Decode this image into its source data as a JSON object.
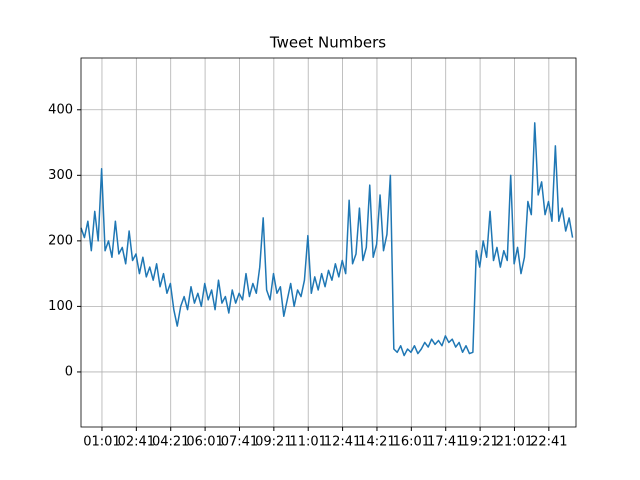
{
  "chart_data": {
    "type": "line",
    "title": "Tweet Numbers",
    "x": [
      0,
      10,
      20,
      30,
      40,
      50,
      60,
      70,
      80,
      90,
      100,
      110,
      120,
      130,
      140,
      150,
      160,
      170,
      180,
      190,
      200,
      210,
      220,
      230,
      240,
      250,
      260,
      270,
      280,
      290,
      300,
      310,
      320,
      330,
      340,
      350,
      360,
      370,
      380,
      390,
      400,
      410,
      420,
      430,
      440,
      450,
      460,
      470,
      480,
      490,
      500,
      510,
      520,
      530,
      540,
      550,
      560,
      570,
      580,
      590,
      600,
      610,
      620,
      630,
      640,
      650,
      660,
      670,
      680,
      690,
      700,
      710,
      720,
      730,
      740,
      750,
      760,
      770,
      780,
      790,
      800,
      810,
      820,
      830,
      840,
      850,
      860,
      870,
      880,
      890,
      900,
      910,
      920,
      930,
      940,
      950,
      960,
      970,
      980,
      990,
      1000,
      1010,
      1020,
      1030,
      1040,
      1050,
      1060,
      1070,
      1080,
      1090,
      1100,
      1110,
      1120,
      1130,
      1140,
      1150,
      1160,
      1170,
      1180,
      1190,
      1200,
      1210,
      1220,
      1230,
      1240,
      1250,
      1260,
      1270,
      1280,
      1290,
      1300,
      1310,
      1320,
      1330,
      1340,
      1350,
      1360,
      1370,
      1380,
      1390,
      1400,
      1410,
      1420,
      1430
    ],
    "series": [
      {
        "color": "#1f77b4",
        "values": [
          220,
          205,
          230,
          185,
          245,
          200,
          310,
          185,
          200,
          175,
          230,
          180,
          190,
          165,
          215,
          170,
          180,
          150,
          175,
          145,
          160,
          140,
          165,
          130,
          150,
          120,
          135,
          95,
          70,
          100,
          115,
          95,
          130,
          105,
          120,
          100,
          135,
          110,
          125,
          95,
          140,
          105,
          115,
          90,
          125,
          105,
          120,
          110,
          150,
          115,
          135,
          120,
          160,
          235,
          125,
          110,
          150,
          120,
          130,
          85,
          110,
          135,
          100,
          125,
          115,
          140,
          208,
          120,
          145,
          125,
          150,
          130,
          155,
          140,
          165,
          145,
          170,
          150,
          262,
          165,
          180,
          250,
          170,
          190,
          285,
          175,
          195,
          270,
          185,
          210,
          300,
          35,
          30,
          40,
          25,
          35,
          30,
          40,
          28,
          35,
          45,
          38,
          50,
          42,
          48,
          40,
          55,
          45,
          50,
          38,
          45,
          30,
          40,
          28,
          30,
          185,
          160,
          200,
          175,
          245,
          170,
          190,
          160,
          185,
          170,
          300,
          165,
          190,
          150,
          175,
          260,
          240,
          380,
          270,
          290,
          240,
          260,
          230,
          345,
          230,
          250,
          215,
          235,
          205
        ]
      }
    ],
    "xlim": [
      0,
      1440
    ],
    "xticks": [
      {
        "value": 61,
        "label": "01:01"
      },
      {
        "value": 161,
        "label": "02:41"
      },
      {
        "value": 261,
        "label": "04:21"
      },
      {
        "value": 361,
        "label": "06:01"
      },
      {
        "value": 461,
        "label": "07:41"
      },
      {
        "value": 561,
        "label": "09:21"
      },
      {
        "value": 661,
        "label": "11:01"
      },
      {
        "value": 761,
        "label": "12:41"
      },
      {
        "value": 861,
        "label": "14:21"
      },
      {
        "value": 961,
        "label": "16:01"
      },
      {
        "value": 1061,
        "label": "17:41"
      },
      {
        "value": 1161,
        "label": "19:21"
      },
      {
        "value": 1261,
        "label": "21:01"
      },
      {
        "value": 1361,
        "label": "22:41"
      }
    ],
    "ylim": [
      -84,
      479
    ],
    "yticks": [
      0,
      100,
      200,
      300,
      400
    ],
    "grid": true
  }
}
